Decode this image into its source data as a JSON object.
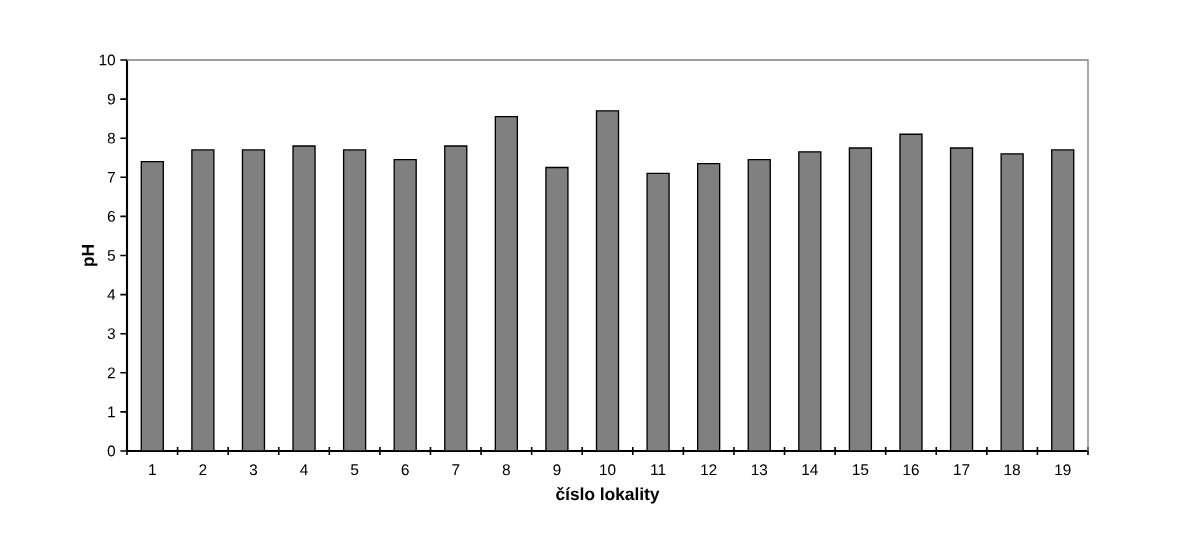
{
  "chart_data": {
    "type": "bar",
    "xlabel": "číslo lokality",
    "ylabel": "pH",
    "categories": [
      "1",
      "2",
      "3",
      "4",
      "5",
      "6",
      "7",
      "8",
      "9",
      "10",
      "11",
      "12",
      "13",
      "14",
      "15",
      "16",
      "17",
      "18",
      "19"
    ],
    "values": [
      7.4,
      7.7,
      7.7,
      7.8,
      7.7,
      7.45,
      7.8,
      8.55,
      7.25,
      8.7,
      7.1,
      7.35,
      7.45,
      7.65,
      7.75,
      8.1,
      7.75,
      7.6,
      7.7
    ],
    "color": "#808080",
    "ylim": [
      0,
      10
    ],
    "yticks": [
      0,
      1,
      2,
      3,
      4,
      5,
      6,
      7,
      8,
      9,
      10
    ],
    "grid": false
  }
}
